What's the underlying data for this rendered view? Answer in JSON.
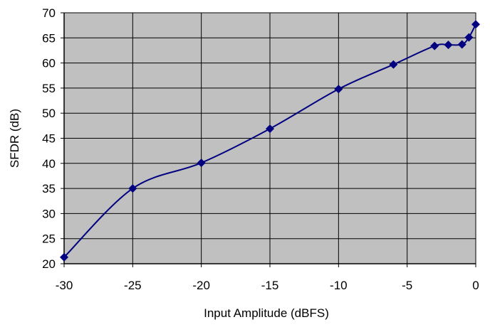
{
  "chart_data": {
    "type": "line",
    "title": "",
    "xlabel": "Input Amplitude (dBFS)",
    "ylabel": "SFDR (dB)",
    "xlim": [
      -30,
      0
    ],
    "ylim": [
      20,
      70
    ],
    "x_ticks": [
      -30,
      -25,
      -20,
      -15,
      -10,
      -5,
      0
    ],
    "y_ticks": [
      20,
      25,
      30,
      35,
      40,
      45,
      50,
      55,
      60,
      65,
      70
    ],
    "grid": true,
    "legend": "none",
    "colors": {
      "plot_bg": "#c0c0c0",
      "line": "#000080",
      "marker": "#000080",
      "grid": "#000000"
    },
    "series": [
      {
        "points": [
          {
            "x": -30,
            "y": 21.3
          },
          {
            "x": -25,
            "y": 35.0
          },
          {
            "x": -20,
            "y": 40.1
          },
          {
            "x": -15,
            "y": 46.9
          },
          {
            "x": -10,
            "y": 54.8
          },
          {
            "x": -6,
            "y": 59.7
          },
          {
            "x": -3,
            "y": 63.4
          },
          {
            "x": -2,
            "y": 63.6
          },
          {
            "x": -1,
            "y": 63.7
          },
          {
            "x": -0.5,
            "y": 65.1
          },
          {
            "x": 0,
            "y": 67.7
          }
        ]
      }
    ]
  }
}
